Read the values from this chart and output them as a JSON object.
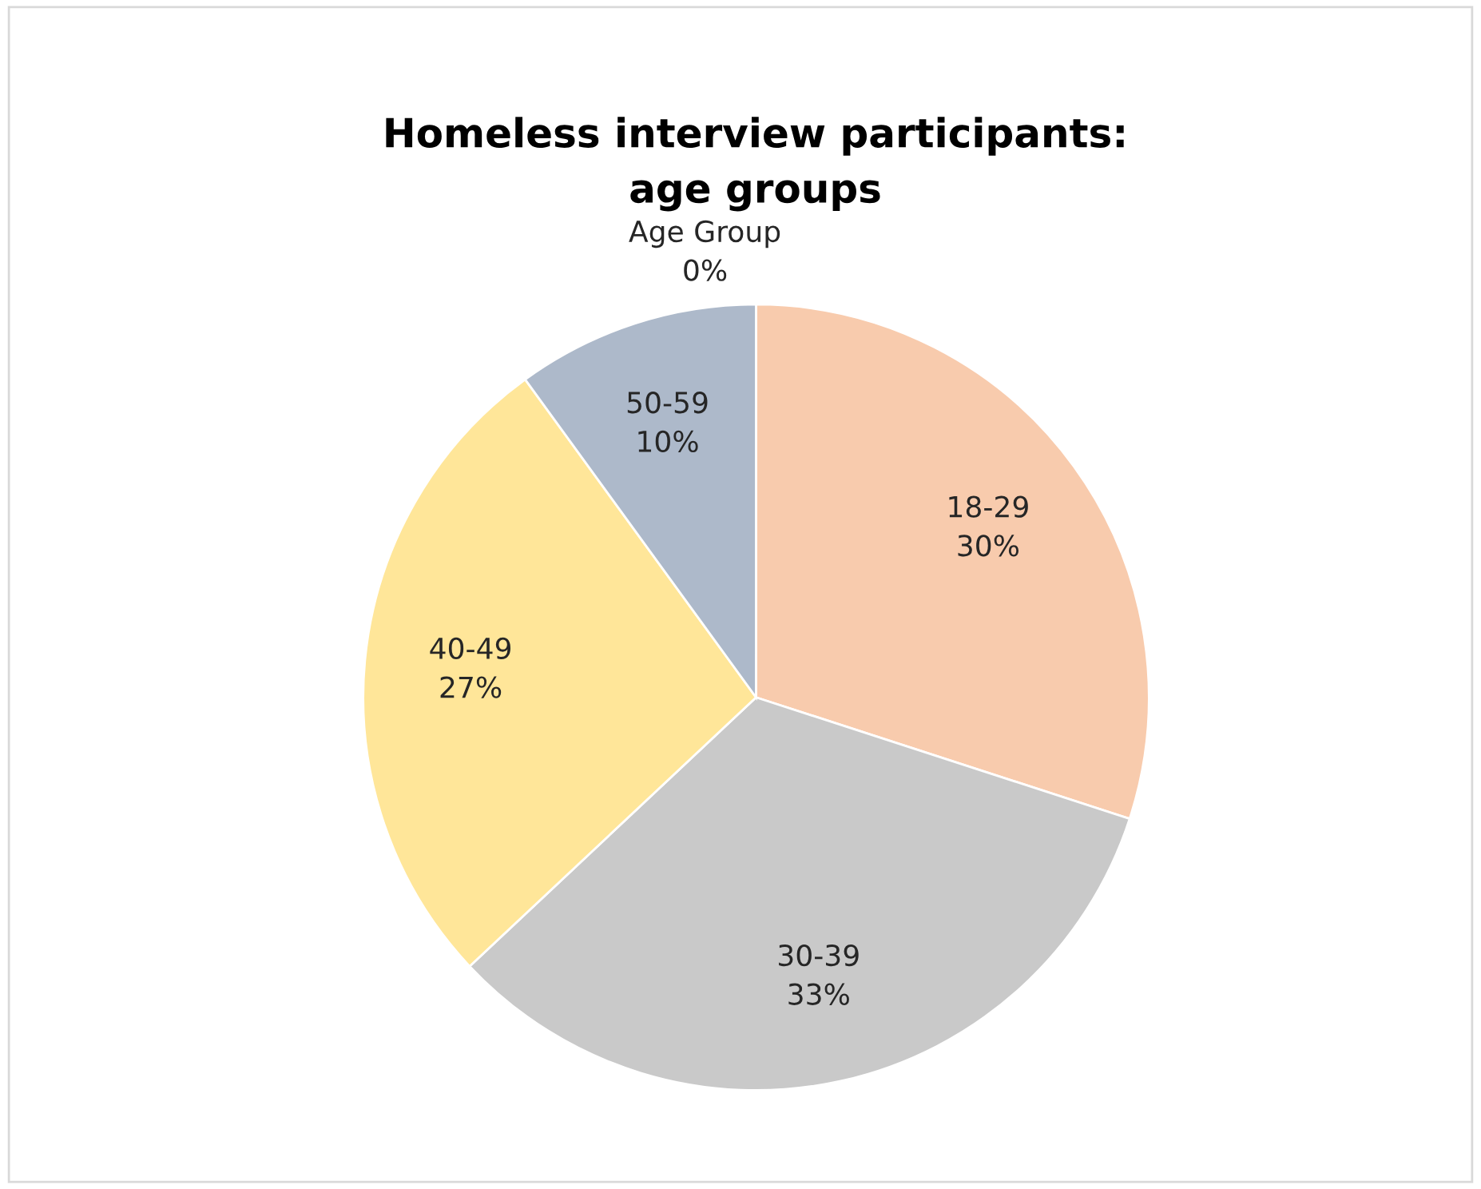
{
  "chart_data": {
    "type": "pie",
    "title": "Homeless interview participants:\nage groups",
    "categories": [
      "Age Group",
      "18-29",
      "30-39",
      "40-49",
      "50-59"
    ],
    "values": [
      0,
      30,
      33,
      27,
      10
    ],
    "value_labels": [
      "0%",
      "30%",
      "33%",
      "27%",
      "10%"
    ],
    "colors": [
      "#4472c4",
      "#f8cbad",
      "#c9c9c9",
      "#ffe699",
      "#adb9ca"
    ],
    "legend": false
  }
}
